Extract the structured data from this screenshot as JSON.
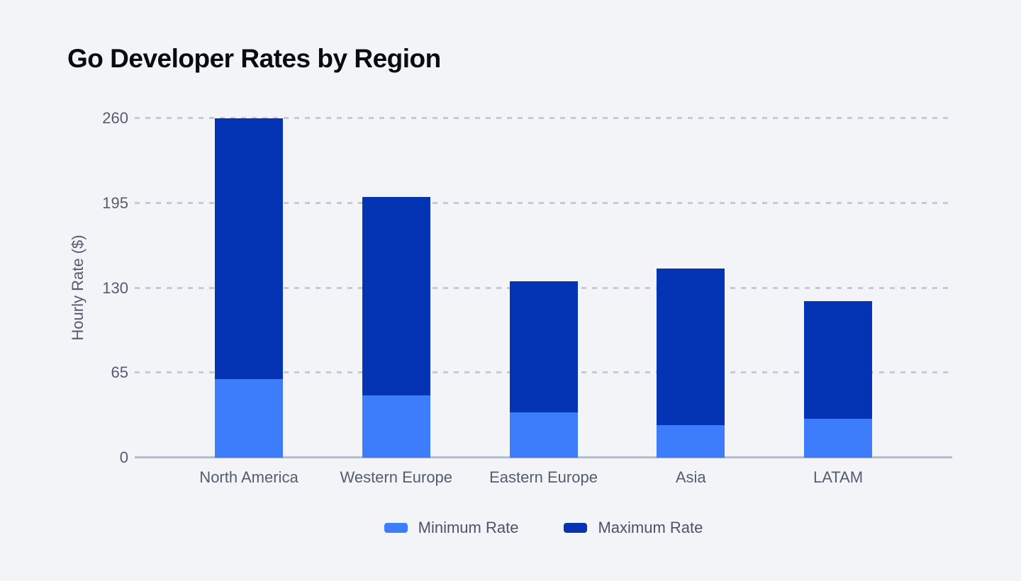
{
  "page": {
    "background_color": "#F3F4F8"
  },
  "chart_data": {
    "type": "bar",
    "variant": "min-max-overlay",
    "title": "Go Developer Rates by Region",
    "ylabel": "Hourly Rate ($)",
    "xlabel": "",
    "categories": [
      "North America",
      "Western Europe",
      "Eastern Europe",
      "Asia",
      "LATAM"
    ],
    "series": [
      {
        "name": "Minimum Rate",
        "color": "#3D7DFB",
        "values": [
          60,
          48,
          35,
          25,
          30
        ]
      },
      {
        "name": "Maximum Rate",
        "color": "#0433B3",
        "values": [
          260,
          200,
          135,
          145,
          120
        ]
      }
    ],
    "ylim": [
      0,
      260
    ],
    "yticks": [
      0,
      65,
      130,
      195,
      260
    ],
    "grid": {
      "horizontal": true,
      "style": "dashed",
      "color": "#C5CAD6"
    },
    "axis_line_color": "#B6BCCA",
    "tick_text_color": "#565C6F",
    "legend": {
      "position": "bottom",
      "items": [
        "Minimum Rate",
        "Maximum Rate"
      ]
    }
  }
}
